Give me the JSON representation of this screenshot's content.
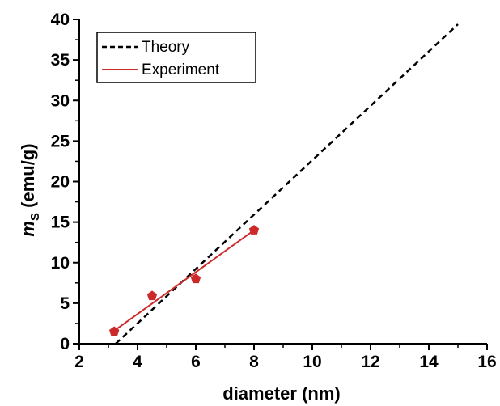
{
  "chart_data": {
    "type": "line",
    "title": "",
    "xlabel": "diameter (nm)",
    "ylabel_main": "m",
    "ylabel_sub": "S",
    "ylabel_rest": " (emu/g)",
    "xlim": [
      2,
      16
    ],
    "ylim": [
      0,
      40
    ],
    "xticks": [
      2,
      4,
      6,
      8,
      10,
      12,
      14,
      16
    ],
    "yticks": [
      0,
      5,
      10,
      15,
      20,
      25,
      30,
      35,
      40
    ],
    "grid": false,
    "legend_position": "top-left",
    "series": [
      {
        "name": "Theory",
        "style": "dashed",
        "color": "#000000",
        "x": [
          3.25,
          15.0
        ],
        "y": [
          0,
          39.4
        ]
      },
      {
        "name": "Experiment",
        "style": "solid",
        "color": "#cc2a2a",
        "fit_x": [
          3.2,
          8.0
        ],
        "fit_y": [
          1.6,
          14.0
        ],
        "points_x": [
          3.2,
          4.5,
          6.0,
          8.0
        ],
        "points_y": [
          1.5,
          5.9,
          8.0,
          14.0
        ]
      }
    ]
  }
}
